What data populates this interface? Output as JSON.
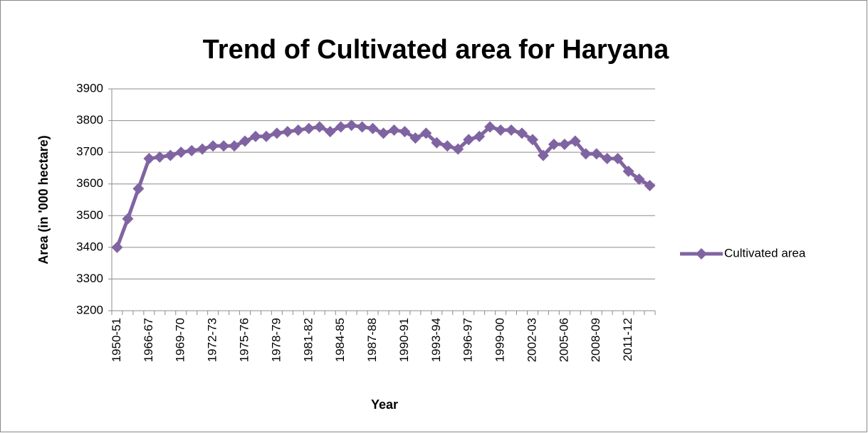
{
  "chart_data": {
    "type": "line",
    "title": "Trend of Cultivated area for Haryana",
    "x_label": "Year",
    "y_label": "Area (in '000 hectare)",
    "categories": [
      "1950-51",
      null,
      null,
      "1966-67",
      null,
      null,
      "1969-70",
      null,
      null,
      "1972-73",
      null,
      null,
      "1975-76",
      null,
      null,
      "1978-79",
      null,
      null,
      "1981-82",
      null,
      null,
      "1984-85",
      null,
      null,
      "1987-88",
      null,
      null,
      "1990-91",
      null,
      null,
      "1993-94",
      null,
      null,
      "1996-97",
      null,
      null,
      "1999-00",
      null,
      null,
      "2002-03",
      null,
      null,
      "2005-06",
      null,
      null,
      "2008-09",
      null,
      null,
      "2011-12",
      null,
      null
    ],
    "series": [
      {
        "name": "Cultivated area",
        "color": "#8064a2",
        "values": [
          3400,
          3490,
          3585,
          3680,
          3685,
          3690,
          3700,
          3705,
          3710,
          3720,
          3720,
          3720,
          3735,
          3750,
          3750,
          3760,
          3765,
          3770,
          3775,
          3780,
          3765,
          3780,
          3785,
          3780,
          3775,
          3760,
          3770,
          3765,
          3745,
          3760,
          3730,
          3720,
          3710,
          3740,
          3750,
          3780,
          3770,
          3770,
          3760,
          3740,
          3690,
          3725,
          3725,
          3735,
          3695,
          3695,
          3680,
          3680,
          3640,
          3615,
          3595
        ]
      }
    ],
    "ylim": [
      3200,
      3900
    ],
    "yticks": [
      3200,
      3300,
      3400,
      3500,
      3600,
      3700,
      3800,
      3900
    ],
    "grid": true,
    "legend": "right"
  }
}
